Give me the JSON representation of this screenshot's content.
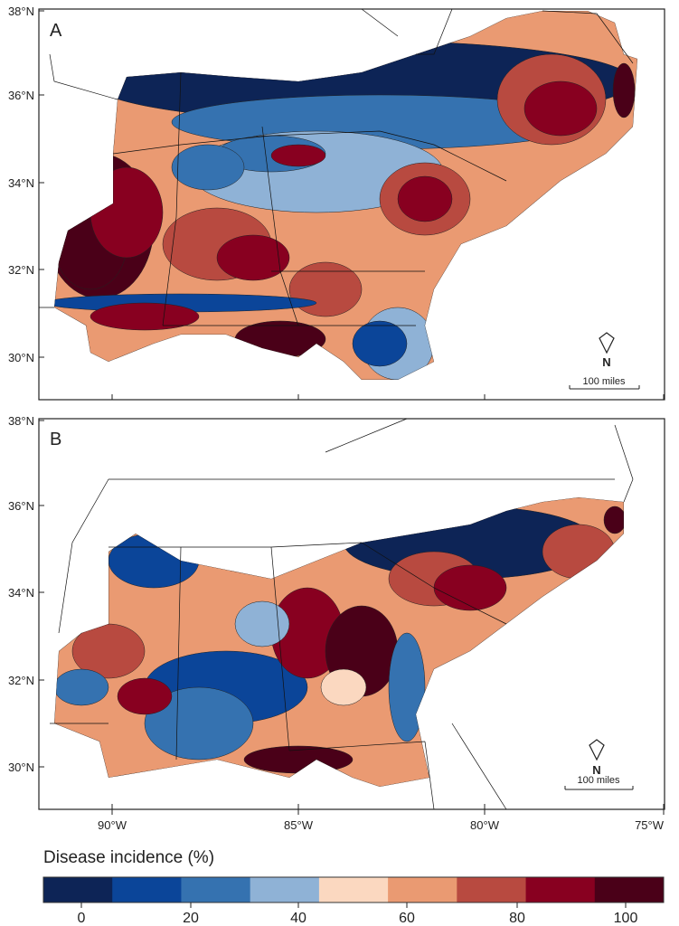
{
  "panels": [
    {
      "label": "A",
      "lat_ticks": [
        "38°N",
        "36°N",
        "34°N",
        "32°N",
        "30°N"
      ],
      "scale_bar": "100 miles",
      "north": "N"
    },
    {
      "label": "B",
      "lat_ticks": [
        "38°N",
        "36°N",
        "34°N",
        "32°N",
        "30°N"
      ],
      "scale_bar": "100 miles",
      "north": "N"
    }
  ],
  "lon_ticks": [
    "90°W",
    "85°W",
    "80°W",
    "75°W"
  ],
  "legend": {
    "title": "Disease incidence (%)",
    "tick_labels": [
      "0",
      "20",
      "40",
      "60",
      "80",
      "100"
    ],
    "colors": [
      "#0d2456",
      "#0b4599",
      "#3572b0",
      "#8fb2d6",
      "#fbd8c0",
      "#ea9a72",
      "#b84a40",
      "#880020",
      "#4a0018"
    ]
  }
}
